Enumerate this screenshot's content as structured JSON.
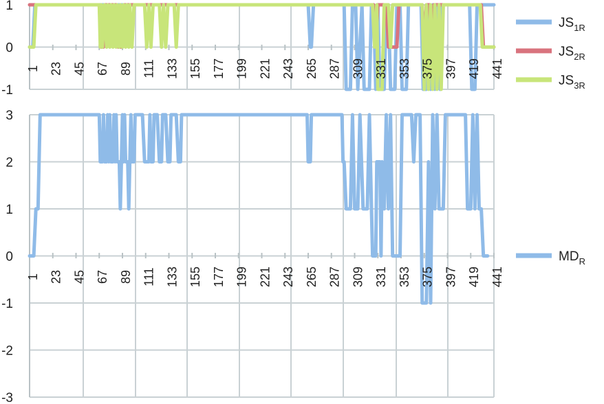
{
  "chart_data": [
    {
      "type": "line",
      "x_ticks": [
        "1",
        "23",
        "45",
        "67",
        "89",
        "111",
        "133",
        "155",
        "177",
        "199",
        "221",
        "243",
        "265",
        "287",
        "309",
        "331",
        "353",
        "375",
        "397",
        "419",
        "441"
      ],
      "y_ticks": [
        "1",
        "0",
        "-1"
      ],
      "ylim": [
        -1,
        1
      ],
      "xlim": [
        1,
        441
      ],
      "grid": true,
      "legend_position": "right",
      "series": [
        {
          "name": "JS",
          "subscript": "1R",
          "color": "#8fbbe8",
          "points": [
            [
              1,
              0
            ],
            [
              4,
              0
            ],
            [
              6,
              1
            ],
            [
              265,
              1
            ],
            [
              267,
              0
            ],
            [
              268,
              0
            ],
            [
              270,
              1
            ],
            [
              299,
              1
            ],
            [
              301,
              -1
            ],
            [
              305,
              -1
            ],
            [
              307,
              1
            ],
            [
              310,
              1
            ],
            [
              312,
              -1
            ],
            [
              316,
              1
            ],
            [
              318,
              -1
            ],
            [
              323,
              -1
            ],
            [
              325,
              1
            ],
            [
              327,
              1
            ],
            [
              329,
              -1
            ],
            [
              331,
              1
            ],
            [
              333,
              -1
            ],
            [
              337,
              -1
            ],
            [
              339,
              1
            ],
            [
              341,
              1
            ],
            [
              343,
              -1
            ],
            [
              347,
              -1
            ],
            [
              349,
              1
            ],
            [
              352,
              1
            ],
            [
              354,
              -1
            ],
            [
              358,
              -1
            ],
            [
              360,
              1
            ],
            [
              372,
              1
            ],
            [
              374,
              -1
            ],
            [
              377,
              -1
            ],
            [
              379,
              1
            ],
            [
              381,
              -1
            ],
            [
              383,
              1
            ],
            [
              385,
              -1
            ],
            [
              387,
              1
            ],
            [
              390,
              -1
            ],
            [
              392,
              1
            ],
            [
              418,
              1
            ],
            [
              420,
              -1
            ],
            [
              423,
              -1
            ],
            [
              425,
              1
            ],
            [
              441,
              1
            ]
          ]
        },
        {
          "name": "JS",
          "subscript": "2R",
          "color": "#d9737e",
          "points": [
            [
              1,
              1
            ],
            [
              67,
              1
            ],
            [
              69,
              0
            ],
            [
              71,
              0
            ],
            [
              73,
              1
            ],
            [
              83,
              1
            ],
            [
              85,
              0
            ],
            [
              89,
              0
            ],
            [
              91,
              1
            ],
            [
              327,
              1
            ],
            [
              329,
              0
            ],
            [
              331,
              1
            ],
            [
              339,
              1
            ],
            [
              341,
              0
            ],
            [
              349,
              0
            ],
            [
              351,
              1
            ],
            [
              373,
              1
            ],
            [
              375,
              0
            ],
            [
              377,
              1
            ],
            [
              380,
              1
            ],
            [
              382,
              0
            ],
            [
              384,
              1
            ],
            [
              429,
              1
            ],
            [
              431,
              0
            ],
            [
              441,
              0
            ]
          ]
        },
        {
          "name": "JS",
          "subscript": "3R",
          "color": "#c8e57a",
          "points": [
            [
              1,
              0
            ],
            [
              5,
              0
            ],
            [
              7,
              1
            ],
            [
              67,
              1
            ],
            [
              68,
              0
            ],
            [
              69,
              1
            ],
            [
              70,
              0
            ],
            [
              72,
              1
            ],
            [
              74,
              0
            ],
            [
              75,
              1
            ],
            [
              77,
              0
            ],
            [
              78,
              1
            ],
            [
              80,
              0
            ],
            [
              81,
              1
            ],
            [
              83,
              0
            ],
            [
              84,
              1
            ],
            [
              86,
              0
            ],
            [
              87,
              1
            ],
            [
              89,
              0
            ],
            [
              90,
              1
            ],
            [
              92,
              0
            ],
            [
              93,
              1
            ],
            [
              95,
              0
            ],
            [
              96,
              1
            ],
            [
              98,
              0
            ],
            [
              100,
              1
            ],
            [
              110,
              1
            ],
            [
              112,
              0
            ],
            [
              114,
              1
            ],
            [
              116,
              0
            ],
            [
              118,
              1
            ],
            [
              124,
              1
            ],
            [
              126,
              0
            ],
            [
              128,
              1
            ],
            [
              130,
              0
            ],
            [
              132,
              1
            ],
            [
              138,
              1
            ],
            [
              140,
              0
            ],
            [
              142,
              1
            ],
            [
              326,
              1
            ],
            [
              328,
              0
            ],
            [
              330,
              1
            ],
            [
              331,
              -1
            ],
            [
              335,
              -1
            ],
            [
              337,
              1
            ],
            [
              341,
              1
            ],
            [
              343,
              0
            ],
            [
              345,
              1
            ],
            [
              373,
              1
            ],
            [
              375,
              -1
            ],
            [
              377,
              1
            ],
            [
              379,
              -1
            ],
            [
              381,
              1
            ],
            [
              383,
              -1
            ],
            [
              385,
              1
            ],
            [
              387,
              -1
            ],
            [
              389,
              1
            ],
            [
              391,
              -1
            ],
            [
              393,
              1
            ],
            [
              428,
              1
            ],
            [
              430,
              0
            ],
            [
              441,
              0
            ]
          ]
        }
      ]
    },
    {
      "type": "line",
      "x_ticks": [
        "1",
        "23",
        "45",
        "67",
        "89",
        "111",
        "133",
        "155",
        "177",
        "199",
        "221",
        "243",
        "265",
        "287",
        "309",
        "331",
        "353",
        "375",
        "397",
        "419",
        "441"
      ],
      "y_ticks": [
        "3",
        "2",
        "1",
        "0",
        "-1",
        "-2",
        "-3"
      ],
      "ylim": [
        -3,
        3
      ],
      "xlim": [
        1,
        441
      ],
      "grid": true,
      "legend_position": "right",
      "series": [
        {
          "name": "MD",
          "subscript": "R",
          "color": "#8fbbe8",
          "points": [
            [
              1,
              0
            ],
            [
              5,
              0
            ],
            [
              7,
              1
            ],
            [
              9,
              1
            ],
            [
              11,
              3
            ],
            [
              67,
              3
            ],
            [
              68,
              2
            ],
            [
              70,
              2
            ],
            [
              71,
              3
            ],
            [
              72,
              2
            ],
            [
              74,
              2
            ],
            [
              75,
              3
            ],
            [
              76,
              2
            ],
            [
              77,
              3
            ],
            [
              78,
              2
            ],
            [
              80,
              2
            ],
            [
              81,
              3
            ],
            [
              82,
              2
            ],
            [
              83,
              3
            ],
            [
              84,
              2
            ],
            [
              86,
              2
            ],
            [
              87,
              1
            ],
            [
              88,
              2
            ],
            [
              89,
              3
            ],
            [
              90,
              2
            ],
            [
              91,
              3
            ],
            [
              92,
              2
            ],
            [
              94,
              2
            ],
            [
              95,
              1
            ],
            [
              96,
              2
            ],
            [
              97,
              3
            ],
            [
              98,
              2
            ],
            [
              100,
              2
            ],
            [
              101,
              3
            ],
            [
              108,
              3
            ],
            [
              110,
              2
            ],
            [
              114,
              2
            ],
            [
              115,
              3
            ],
            [
              116,
              2
            ],
            [
              118,
              2
            ],
            [
              119,
              3
            ],
            [
              122,
              3
            ],
            [
              124,
              2
            ],
            [
              126,
              2
            ],
            [
              127,
              3
            ],
            [
              130,
              3
            ],
            [
              132,
              2
            ],
            [
              134,
              2
            ],
            [
              135,
              3
            ],
            [
              140,
              3
            ],
            [
              142,
              2
            ],
            [
              144,
              2
            ],
            [
              145,
              3
            ],
            [
              264,
              3
            ],
            [
              265,
              2
            ],
            [
              267,
              2
            ],
            [
              268,
              3
            ],
            [
              297,
              3
            ],
            [
              298,
              2
            ],
            [
              299,
              2
            ],
            [
              301,
              1
            ],
            [
              305,
              1
            ],
            [
              307,
              3
            ],
            [
              309,
              1
            ],
            [
              312,
              1
            ],
            [
              314,
              3
            ],
            [
              317,
              1
            ],
            [
              321,
              1
            ],
            [
              323,
              3
            ],
            [
              325,
              1
            ],
            [
              326,
              0
            ],
            [
              329,
              0
            ],
            [
              330,
              2
            ],
            [
              333,
              2
            ],
            [
              334,
              0
            ],
            [
              335,
              2
            ],
            [
              337,
              1
            ],
            [
              339,
              3
            ],
            [
              341,
              1
            ],
            [
              343,
              3
            ],
            [
              345,
              0
            ],
            [
              352,
              0
            ],
            [
              354,
              3
            ],
            [
              363,
              3
            ],
            [
              365,
              2
            ],
            [
              367,
              3
            ],
            [
              371,
              3
            ],
            [
              373,
              -1
            ],
            [
              377,
              -1
            ],
            [
              379,
              2
            ],
            [
              381,
              -1
            ],
            [
              383,
              3
            ],
            [
              385,
              1
            ],
            [
              387,
              3
            ],
            [
              389,
              1
            ],
            [
              393,
              1
            ],
            [
              395,
              3
            ],
            [
              414,
              3
            ],
            [
              416,
              1
            ],
            [
              419,
              1
            ],
            [
              421,
              3
            ],
            [
              423,
              1
            ],
            [
              425,
              3
            ],
            [
              427,
              1
            ],
            [
              429,
              1
            ],
            [
              431,
              0
            ],
            [
              435,
              0
            ]
          ]
        }
      ]
    }
  ]
}
